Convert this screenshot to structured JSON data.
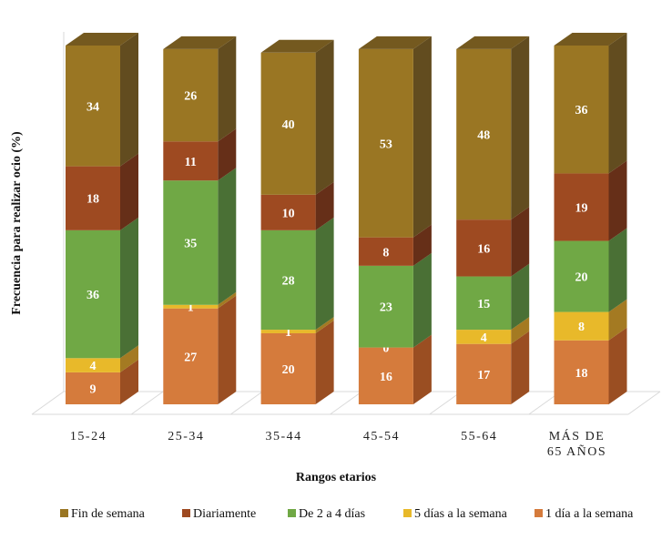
{
  "chart_data": {
    "type": "bar",
    "stacked": true,
    "three_d": true,
    "title": "",
    "xlabel": "Rangos etarios",
    "ylabel": "Frecuencia para realizar ocio (%)",
    "ylim": [
      0,
      101
    ],
    "grid": false,
    "legend_position": "bottom",
    "categories": [
      [
        "15-24"
      ],
      [
        "25-34"
      ],
      [
        "35-44"
      ],
      [
        "45-54"
      ],
      [
        "55-64"
      ],
      [
        "MÁS DE",
        "65 AÑOS"
      ]
    ],
    "series": [
      {
        "name": "1 día a la semana",
        "color": "#D57B3C",
        "side": "#9A4E22",
        "values": [
          9,
          27,
          20,
          16,
          17,
          18
        ]
      },
      {
        "name": "5 días a la semana",
        "color": "#E8B92A",
        "side": "#A47A22",
        "values": [
          4,
          1,
          1,
          0,
          4,
          8
        ]
      },
      {
        "name": "De 2 a 4 días",
        "color": "#70A845",
        "side": "#4A7035",
        "values": [
          36,
          35,
          28,
          23,
          15,
          20
        ]
      },
      {
        "name": "Diariamente",
        "color": "#9E4A21",
        "side": "#662F18",
        "values": [
          18,
          11,
          10,
          8,
          16,
          19
        ]
      },
      {
        "name": "Fin de semana",
        "color": "#9A7623",
        "side": "#624C1F",
        "values": [
          34,
          26,
          40,
          53,
          48,
          36
        ]
      }
    ],
    "legend_order": [
      4,
      3,
      2,
      1,
      0
    ]
  }
}
